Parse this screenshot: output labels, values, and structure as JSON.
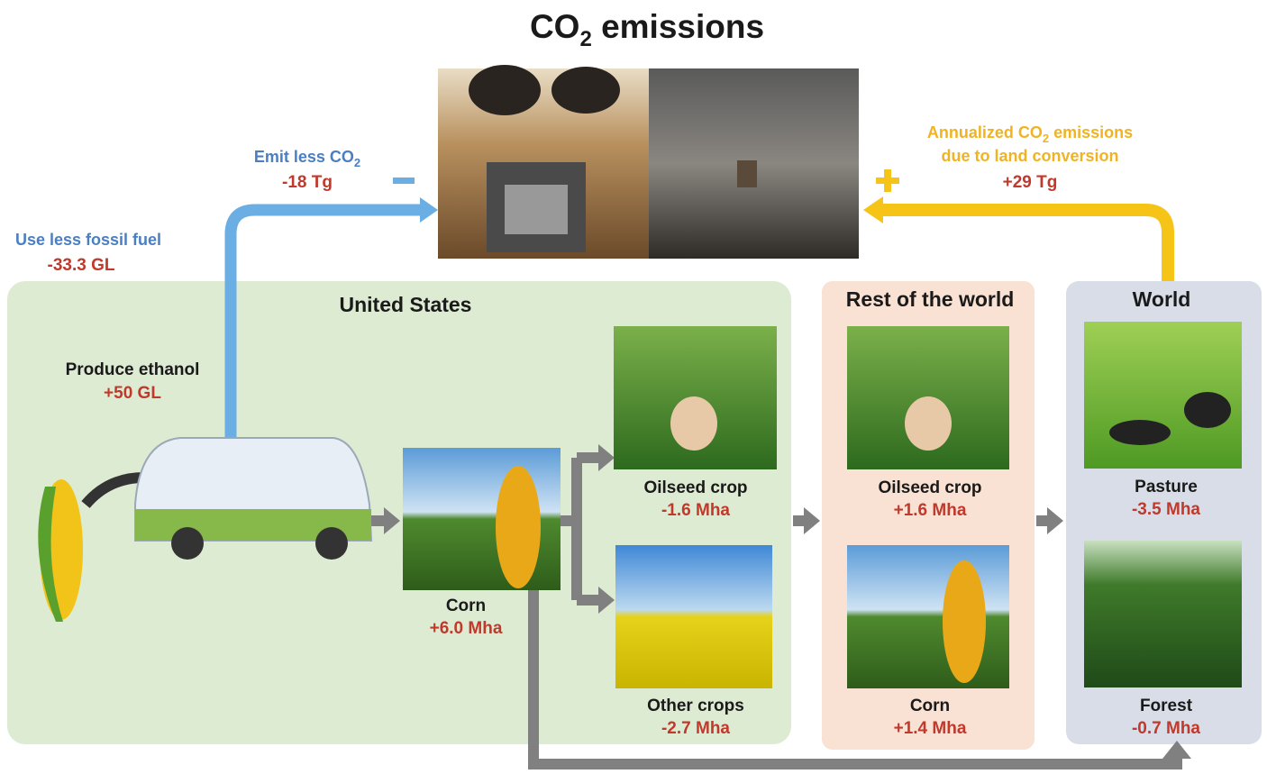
{
  "title": {
    "main": "CO",
    "subscript": "2",
    "rest": " emissions"
  },
  "flows": {
    "fossil_fuel": {
      "label": "Use less fossil fuel",
      "value": "-33.3 GL"
    },
    "emit_less": {
      "label": "Emit less CO",
      "subscript": "2",
      "value": "-18 Tg"
    },
    "land_conversion": {
      "label_1": "Annualized CO",
      "subscript": "2",
      "label_2": "  emissions",
      "label_3": "due to land conversion",
      "value": "+29 Tg"
    }
  },
  "regions": [
    {
      "title": "United States",
      "source": {
        "label": "Produce ethanol",
        "value": "+50 GL"
      },
      "items": [
        {
          "label": "Corn",
          "value": "+6.0 Mha"
        },
        {
          "label": "Oilseed crop",
          "value": "-1.6 Mha"
        },
        {
          "label": "Other crops",
          "value": "-2.7 Mha"
        }
      ]
    },
    {
      "title": "Rest of the world",
      "items": [
        {
          "label": "Oilseed crop",
          "value": "+1.6 Mha"
        },
        {
          "label": "Corn",
          "value": "+1.4 Mha"
        }
      ]
    },
    {
      "title": "World",
      "items": [
        {
          "label": "Pasture",
          "value": "-3.5 Mha"
        },
        {
          "label": "Forest",
          "value": "-0.7 Mha"
        }
      ]
    }
  ]
}
